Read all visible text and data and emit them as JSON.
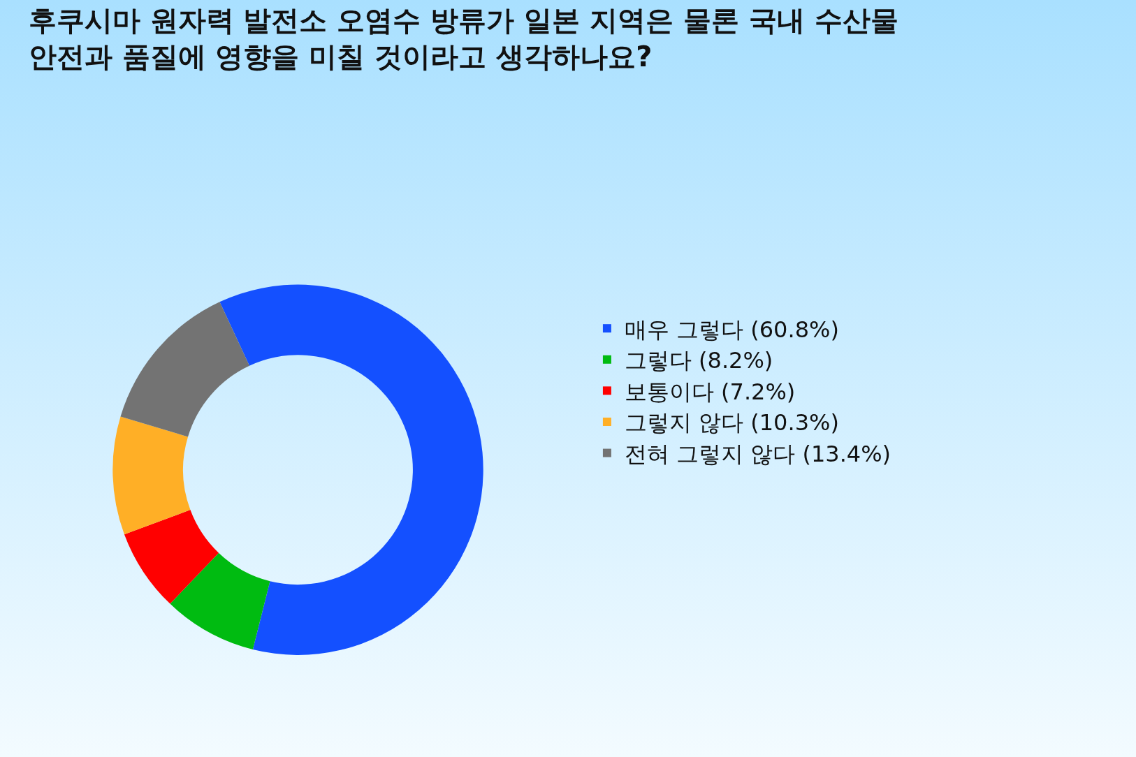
{
  "chart_data": {
    "type": "donut",
    "title": "후쿠시마 원자력 발전소 오염수 방류가 일본 지역은 물론 국내 수산물\n안전과 품질에 영향을 미칠 것이라고 생각하나요?",
    "categories": [
      "매우 그렇다 (60.8%)",
      "그렇다 (8.2%)",
      "보통이다 (7.2%)",
      "그렇지 않다 (10.3%)",
      "전혀 그렇지 않다 (13.4%)"
    ],
    "values": [
      60.8,
      8.2,
      7.2,
      10.3,
      13.4
    ],
    "colors": [
      "#1450ff",
      "#00bb11",
      "#ff0000",
      "#ffaf26",
      "#737373"
    ],
    "legend": "right"
  }
}
